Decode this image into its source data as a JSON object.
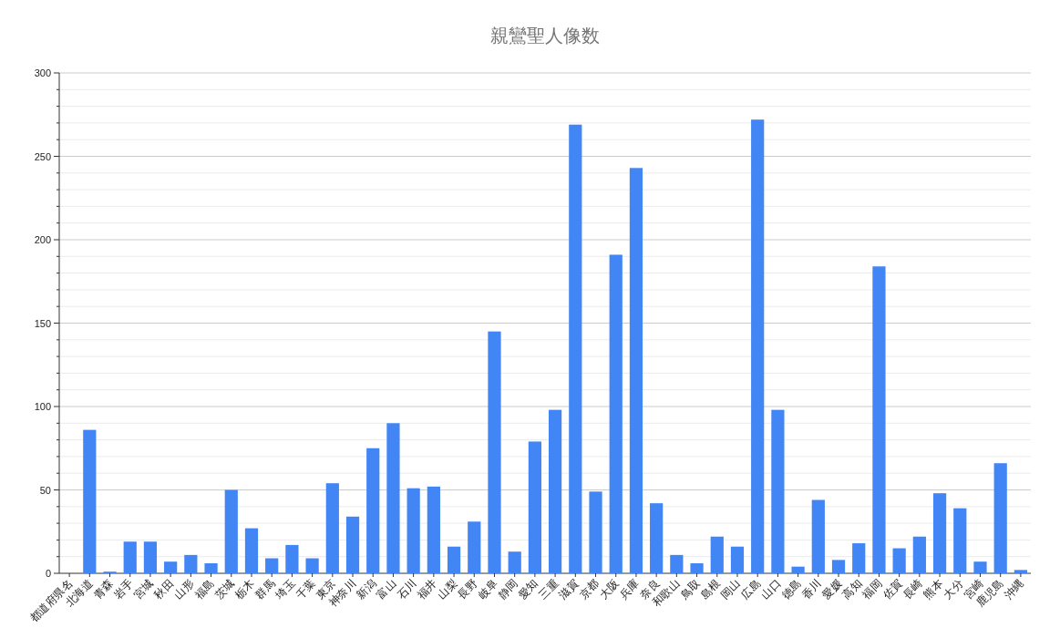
{
  "chart_data": {
    "type": "bar",
    "title": "親鸞聖人像数",
    "categories": [
      "都道府県名",
      "北海道",
      "青森",
      "岩手",
      "宮城",
      "秋田",
      "山形",
      "福島",
      "茨城",
      "栃木",
      "群馬",
      "埼玉",
      "千葉",
      "東京",
      "神奈川",
      "新潟",
      "富山",
      "石川",
      "福井",
      "山梨",
      "長野",
      "岐阜",
      "静岡",
      "愛知",
      "三重",
      "滋賀",
      "京都",
      "大阪",
      "兵庫",
      "奈良",
      "和歌山",
      "鳥取",
      "島根",
      "岡山",
      "広島",
      "山口",
      "徳島",
      "香川",
      "愛媛",
      "高知",
      "福岡",
      "佐賀",
      "長崎",
      "熊本",
      "大分",
      "宮崎",
      "鹿児島",
      "沖縄"
    ],
    "values": [
      null,
      86,
      1,
      19,
      19,
      7,
      11,
      6,
      50,
      27,
      9,
      17,
      9,
      54,
      34,
      75,
      90,
      51,
      52,
      16,
      31,
      145,
      13,
      79,
      98,
      269,
      49,
      191,
      243,
      42,
      11,
      6,
      22,
      16,
      272,
      98,
      4,
      44,
      8,
      18,
      184,
      15,
      22,
      48,
      39,
      7,
      66,
      2
    ],
    "color": "#4285f4",
    "ylim": [
      0,
      300
    ],
    "yticks": [
      0,
      {
        "value": 10,
        "label": null
      },
      {
        "value": 20,
        "label": null
      },
      {
        "value": 30,
        "label": null
      },
      {
        "value": 40,
        "label": null
      },
      50,
      {
        "value": 60,
        "label": null
      },
      {
        "value": 70,
        "label": null
      },
      {
        "value": 80,
        "label": null
      },
      {
        "value": 90,
        "label": null
      },
      100,
      {
        "value": 110,
        "label": null
      },
      {
        "value": 120,
        "label": null
      },
      {
        "value": 130,
        "label": null
      },
      {
        "value": 140,
        "label": null
      },
      150,
      {
        "value": 160,
        "label": null
      },
      {
        "value": 170,
        "label": null
      },
      {
        "value": 180,
        "label": null
      },
      {
        "value": 190,
        "label": null
      },
      200,
      {
        "value": 210,
        "label": null
      },
      {
        "value": 220,
        "label": null
      },
      {
        "value": 230,
        "label": null
      },
      {
        "value": 240,
        "label": null
      },
      250,
      {
        "value": 260,
        "label": null
      },
      {
        "value": 270,
        "label": null
      },
      {
        "value": 280,
        "label": null
      },
      {
        "value": 290,
        "label": null
      },
      300
    ],
    "grid": true
  }
}
